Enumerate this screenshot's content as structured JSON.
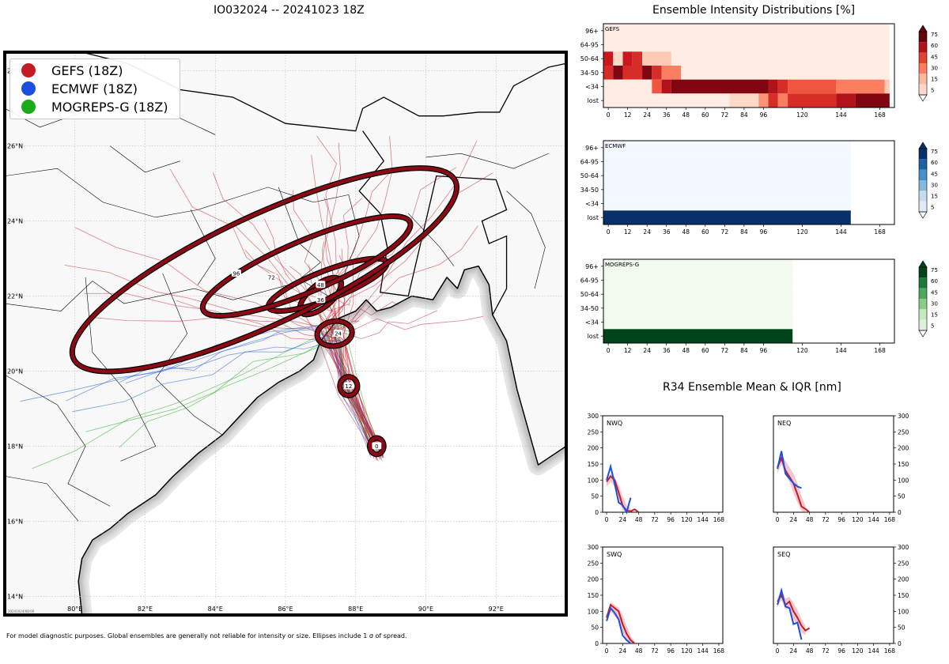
{
  "storm_title": "IO032024 -- 20241023 18Z",
  "footer_note": "For model diagnostic purposes. Global ensembles are generally not reliable for intensity or size. Ellipses include 1 σ of spread.",
  "timestamp_small": "20241024/08:00",
  "legend": {
    "items": [
      {
        "label": "GEFS (18Z)",
        "color": "#c41c24"
      },
      {
        "label": "ECMWF (18Z)",
        "color": "#1a4fe0"
      },
      {
        "label": "MOGREPS-G (18Z)",
        "color": "#1aaa1a"
      }
    ]
  },
  "colors": {
    "gefs": "#c41c24",
    "ecmwf": "#1a4fe0",
    "mogreps": "#1aaa1a",
    "land": "#f8f8f8",
    "ellipse": "#8b0a14"
  },
  "chart_data": [
    {
      "type": "scatter",
      "title": "IO032024 -- 20241023 18Z",
      "description_kind": "track map",
      "lon_range": [
        78,
        94
      ],
      "lat_range": [
        13.5,
        28.5
      ],
      "lon_ticks": [
        "80°E",
        "82°E",
        "84°E",
        "86°E",
        "88°E",
        "90°E",
        "92°E"
      ],
      "lat_ticks": [
        "14°N",
        "16°N",
        "18°N",
        "20°N",
        "22°N",
        "24°N",
        "26°N",
        "28°N"
      ],
      "mean_positions": [
        {
          "hour": "0",
          "lon": 88.6,
          "lat": 18.0
        },
        {
          "hour": "12",
          "lon": 87.8,
          "lat": 19.6
        },
        {
          "hour": "24",
          "lon": 87.5,
          "lat": 21.0
        },
        {
          "hour": "36",
          "lon": 87.0,
          "lat": 21.9
        },
        {
          "hour": "48",
          "lon": 87.0,
          "lat": 22.3
        },
        {
          "hour": "72",
          "lon": 85.6,
          "lat": 22.5
        },
        {
          "hour": "96",
          "lon": 84.6,
          "lat": 22.6
        }
      ],
      "ellipses": [
        {
          "hour": "0",
          "lon": 88.6,
          "lat": 18.0,
          "rx_deg": 0.2,
          "ry_deg": 0.22,
          "rot": 0
        },
        {
          "hour": "12",
          "lon": 87.8,
          "lat": 19.6,
          "rx_deg": 0.25,
          "ry_deg": 0.25,
          "rot": 0
        },
        {
          "hour": "24",
          "lon": 87.4,
          "lat": 21.0,
          "rx_deg": 0.5,
          "ry_deg": 0.33,
          "rot": -8
        },
        {
          "hour": "36",
          "lon": 87.0,
          "lat": 22.0,
          "rx_deg": 0.72,
          "ry_deg": 0.3,
          "rot": -40
        },
        {
          "hour": "48",
          "lon": 87.2,
          "lat": 22.3,
          "rx_deg": 1.8,
          "ry_deg": 0.38,
          "rot": -21
        },
        {
          "hour": "72",
          "lon": 86.6,
          "lat": 22.8,
          "rx_deg": 3.2,
          "ry_deg": 0.68,
          "rot": -23
        },
        {
          "hour": "96",
          "lon": 85.4,
          "lat": 22.7,
          "rx_deg": 6.0,
          "ry_deg": 1.45,
          "rot": -25
        }
      ]
    },
    {
      "type": "heatmap",
      "title": "Ensemble Intensity Distributions [%]",
      "panels": [
        {
          "name": "GEFS",
          "cmap": "red",
          "max_hour": 177,
          "rows": [
            "96+",
            "64-95",
            "50-64",
            "34-50",
            "<34",
            "lost"
          ],
          "x_ticks": [
            "0",
            "12",
            "24",
            "36",
            "48",
            "60",
            "72",
            "84",
            "96",
            "120",
            "144",
            "168"
          ],
          "colorbar_ticks": [
            "75",
            "60",
            "45",
            "30",
            "15",
            "5"
          ],
          "cells": [
            {
              "row": 0,
              "from": 0,
              "to": 177,
              "pct": 3
            },
            {
              "row": 1,
              "from": 0,
              "to": 177,
              "pct": 3
            },
            {
              "row": 2,
              "from": 0,
              "to": 6,
              "pct": 60
            },
            {
              "row": 2,
              "from": 6,
              "to": 12,
              "pct": 10
            },
            {
              "row": 2,
              "from": 12,
              "to": 18,
              "pct": 60
            },
            {
              "row": 2,
              "from": 18,
              "to": 24,
              "pct": 55
            },
            {
              "row": 2,
              "from": 24,
              "to": 42,
              "pct": 15
            },
            {
              "row": 2,
              "from": 42,
              "to": 177,
              "pct": 3
            },
            {
              "row": 3,
              "from": 0,
              "to": 6,
              "pct": 55
            },
            {
              "row": 3,
              "from": 6,
              "to": 12,
              "pct": 75
            },
            {
              "row": 3,
              "from": 12,
              "to": 24,
              "pct": 55
            },
            {
              "row": 3,
              "from": 24,
              "to": 30,
              "pct": 75
            },
            {
              "row": 3,
              "from": 30,
              "to": 36,
              "pct": 55
            },
            {
              "row": 3,
              "from": 36,
              "to": 48,
              "pct": 35
            },
            {
              "row": 3,
              "from": 48,
              "to": 177,
              "pct": 3
            },
            {
              "row": 4,
              "from": 0,
              "to": 30,
              "pct": 3
            },
            {
              "row": 4,
              "from": 30,
              "to": 36,
              "pct": 45
            },
            {
              "row": 4,
              "from": 36,
              "to": 42,
              "pct": 65
            },
            {
              "row": 4,
              "from": 42,
              "to": 102,
              "pct": 75
            },
            {
              "row": 4,
              "from": 102,
              "to": 108,
              "pct": 65
            },
            {
              "row": 4,
              "from": 108,
              "to": 114,
              "pct": 55
            },
            {
              "row": 4,
              "from": 114,
              "to": 144,
              "pct": 45
            },
            {
              "row": 4,
              "from": 144,
              "to": 174,
              "pct": 35
            },
            {
              "row": 4,
              "from": 174,
              "to": 177,
              "pct": 15
            },
            {
              "row": 5,
              "from": 0,
              "to": 78,
              "pct": 3
            },
            {
              "row": 5,
              "from": 78,
              "to": 96,
              "pct": 10
            },
            {
              "row": 5,
              "from": 96,
              "to": 102,
              "pct": 30
            },
            {
              "row": 5,
              "from": 102,
              "to": 108,
              "pct": 55
            },
            {
              "row": 5,
              "from": 108,
              "to": 114,
              "pct": 35
            },
            {
              "row": 5,
              "from": 114,
              "to": 144,
              "pct": 55
            },
            {
              "row": 5,
              "from": 144,
              "to": 156,
              "pct": 65
            },
            {
              "row": 5,
              "from": 156,
              "to": 177,
              "pct": 75
            }
          ]
        },
        {
          "name": "ECMWF",
          "cmap": "blue",
          "max_hour": 177,
          "rows": [
            "96+",
            "64-95",
            "50-64",
            "34-50",
            "<34",
            "lost"
          ],
          "x_ticks": [
            "0",
            "12",
            "24",
            "36",
            "48",
            "60",
            "72",
            "84",
            "96",
            "120",
            "144",
            "168"
          ],
          "colorbar_ticks": [
            "75",
            "60",
            "45",
            "30",
            "15",
            "5"
          ],
          "cells": [
            {
              "row": 0,
              "from": 0,
              "to": 153,
              "pct": 2
            },
            {
              "row": 1,
              "from": 0,
              "to": 153,
              "pct": 2
            },
            {
              "row": 2,
              "from": 0,
              "to": 153,
              "pct": 2
            },
            {
              "row": 3,
              "from": 0,
              "to": 153,
              "pct": 2
            },
            {
              "row": 4,
              "from": 0,
              "to": 153,
              "pct": 2
            },
            {
              "row": 5,
              "from": 0,
              "to": 153,
              "pct": 100
            }
          ]
        },
        {
          "name": "MOGREPS-G",
          "cmap": "green",
          "max_hour": 177,
          "rows": [
            "96+",
            "64-95",
            "50-64",
            "34-50",
            "<34",
            "lost"
          ],
          "x_ticks": [
            "0",
            "12",
            "24",
            "36",
            "48",
            "60",
            "72",
            "84",
            "96",
            "120",
            "144",
            "168"
          ],
          "colorbar_ticks": [
            "75",
            "60",
            "45",
            "30",
            "15",
            "5"
          ],
          "cells": [
            {
              "row": 0,
              "from": 0,
              "to": 117,
              "pct": 2
            },
            {
              "row": 1,
              "from": 0,
              "to": 117,
              "pct": 2
            },
            {
              "row": 2,
              "from": 0,
              "to": 117,
              "pct": 2
            },
            {
              "row": 3,
              "from": 0,
              "to": 117,
              "pct": 2
            },
            {
              "row": 4,
              "from": 0,
              "to": 117,
              "pct": 2
            },
            {
              "row": 5,
              "from": 0,
              "to": 117,
              "pct": 100
            }
          ]
        }
      ]
    },
    {
      "type": "line",
      "title": "R34 Ensemble Mean & IQR [nm]",
      "ylim": [
        0,
        300
      ],
      "y_ticks": [
        "0",
        "50",
        "100",
        "150",
        "200",
        "250",
        "300"
      ],
      "x_ticks": [
        "0",
        "24",
        "48",
        "72",
        "96",
        "120",
        "144",
        "168"
      ],
      "xlim": [
        -6,
        174
      ],
      "panels": [
        {
          "name": "NWQ",
          "y_side": "left",
          "series": [
            {
              "name": "GEFS mean",
              "model": "gefs",
              "x": [
                0,
                6,
                12,
                18,
                24,
                30,
                36,
                42,
                48
              ],
              "y": [
                95,
                112,
                100,
                62,
                20,
                5,
                3,
                9,
                0
              ]
            },
            {
              "name": "GEFS IQR high",
              "model": "gefs-band",
              "x": [
                0,
                6,
                12,
                18,
                24,
                30,
                36
              ],
              "y": [
                105,
                120,
                110,
                85,
                50,
                22,
                10
              ]
            },
            {
              "name": "GEFS IQR low",
              "model": "gefs-band",
              "x": [
                0,
                6,
                12,
                18,
                24,
                30,
                36
              ],
              "y": [
                80,
                95,
                80,
                40,
                5,
                0,
                0
              ]
            },
            {
              "name": "ECMWF mean",
              "model": "ecmwf",
              "x": [
                0,
                6,
                12,
                18,
                24,
                30,
                36
              ],
              "y": [
                100,
                142,
                90,
                30,
                22,
                0,
                45
              ]
            }
          ]
        },
        {
          "name": "NEQ",
          "y_side": "right",
          "series": [
            {
              "name": "GEFS mean",
              "model": "gefs",
              "x": [
                0,
                6,
                12,
                18,
                24,
                30,
                36,
                42,
                48
              ],
              "y": [
                140,
                168,
                130,
                110,
                90,
                55,
                18,
                10,
                0
              ]
            },
            {
              "name": "GEFS IQR high",
              "model": "gefs-band",
              "x": [
                0,
                6,
                12,
                18,
                24,
                30,
                36,
                42
              ],
              "y": [
                150,
                178,
                160,
                140,
                120,
                90,
                50,
                20
              ]
            },
            {
              "name": "GEFS IQR low",
              "model": "gefs-band",
              "x": [
                0,
                6,
                12,
                18,
                24,
                30,
                36,
                42
              ],
              "y": [
                120,
                150,
                115,
                95,
                60,
                30,
                5,
                0
              ]
            },
            {
              "name": "ECMWF mean",
              "model": "ecmwf",
              "x": [
                0,
                6,
                12,
                18,
                24,
                30,
                36
              ],
              "y": [
                135,
                190,
                120,
                105,
                90,
                80,
                75
              ]
            }
          ]
        },
        {
          "name": "SWQ",
          "y_side": "left",
          "series": [
            {
              "name": "GEFS mean",
              "model": "gefs",
              "x": [
                0,
                6,
                12,
                18,
                24,
                30,
                36,
                42
              ],
              "y": [
                80,
                120,
                110,
                100,
                60,
                30,
                10,
                0
              ]
            },
            {
              "name": "GEFS IQR high",
              "model": "gefs-band",
              "x": [
                0,
                6,
                12,
                18,
                24,
                30,
                36,
                42
              ],
              "y": [
                90,
                128,
                120,
                112,
                88,
                55,
                25,
                5
              ]
            },
            {
              "name": "GEFS IQR low",
              "model": "gefs-band",
              "x": [
                0,
                6,
                12,
                18,
                24,
                30,
                36
              ],
              "y": [
                65,
                100,
                85,
                70,
                35,
                10,
                0
              ]
            },
            {
              "name": "ECMWF mean",
              "model": "ecmwf",
              "x": [
                0,
                6,
                12,
                18,
                24,
                30,
                36
              ],
              "y": [
                70,
                110,
                95,
                75,
                25,
                10,
                0
              ]
            }
          ]
        },
        {
          "name": "SEQ",
          "y_side": "right",
          "series": [
            {
              "name": "GEFS mean",
              "model": "gefs",
              "x": [
                0,
                6,
                12,
                18,
                24,
                30,
                36,
                42,
                48
              ],
              "y": [
                130,
                150,
                120,
                130,
                100,
                80,
                55,
                40,
                48
              ]
            },
            {
              "name": "GEFS IQR high",
              "model": "gefs-band",
              "x": [
                0,
                6,
                12,
                18,
                24,
                30,
                36,
                42
              ],
              "y": [
                140,
                165,
                140,
                145,
                125,
                105,
                75,
                55
              ]
            },
            {
              "name": "GEFS IQR low",
              "model": "gefs-band",
              "x": [
                0,
                6,
                12,
                18,
                24,
                30,
                36,
                42
              ],
              "y": [
                115,
                135,
                105,
                110,
                75,
                55,
                35,
                25
              ]
            },
            {
              "name": "ECMWF mean",
              "model": "ecmwf",
              "x": [
                0,
                6,
                12,
                18,
                24,
                30,
                36
              ],
              "y": [
                120,
                165,
                115,
                110,
                60,
                65,
                12
              ]
            }
          ]
        }
      ]
    }
  ]
}
